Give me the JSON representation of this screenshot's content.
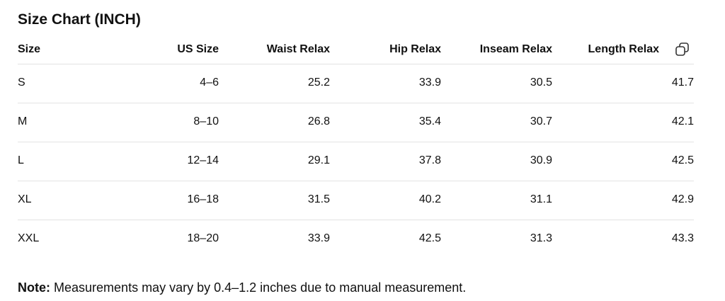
{
  "title": "Size Chart (INCH)",
  "table": {
    "headers": [
      "Size",
      "US Size",
      "Waist Relax",
      "Hip Relax",
      "Inseam Relax",
      "Length Relax"
    ],
    "rows": [
      [
        "S",
        "4–6",
        "25.2",
        "33.9",
        "30.5",
        "41.7"
      ],
      [
        "M",
        "8–10",
        "26.8",
        "35.4",
        "30.7",
        "42.1"
      ],
      [
        "L",
        "12–14",
        "29.1",
        "37.8",
        "30.9",
        "42.5"
      ],
      [
        "XL",
        "16–18",
        "31.5",
        "40.2",
        "31.1",
        "42.9"
      ],
      [
        "XXL",
        "18–20",
        "33.9",
        "42.5",
        "31.3",
        "43.3"
      ]
    ]
  },
  "note": {
    "label": "Note:",
    "text": "Measurements may vary by 0.4–1.2 inches due to manual measurement."
  }
}
